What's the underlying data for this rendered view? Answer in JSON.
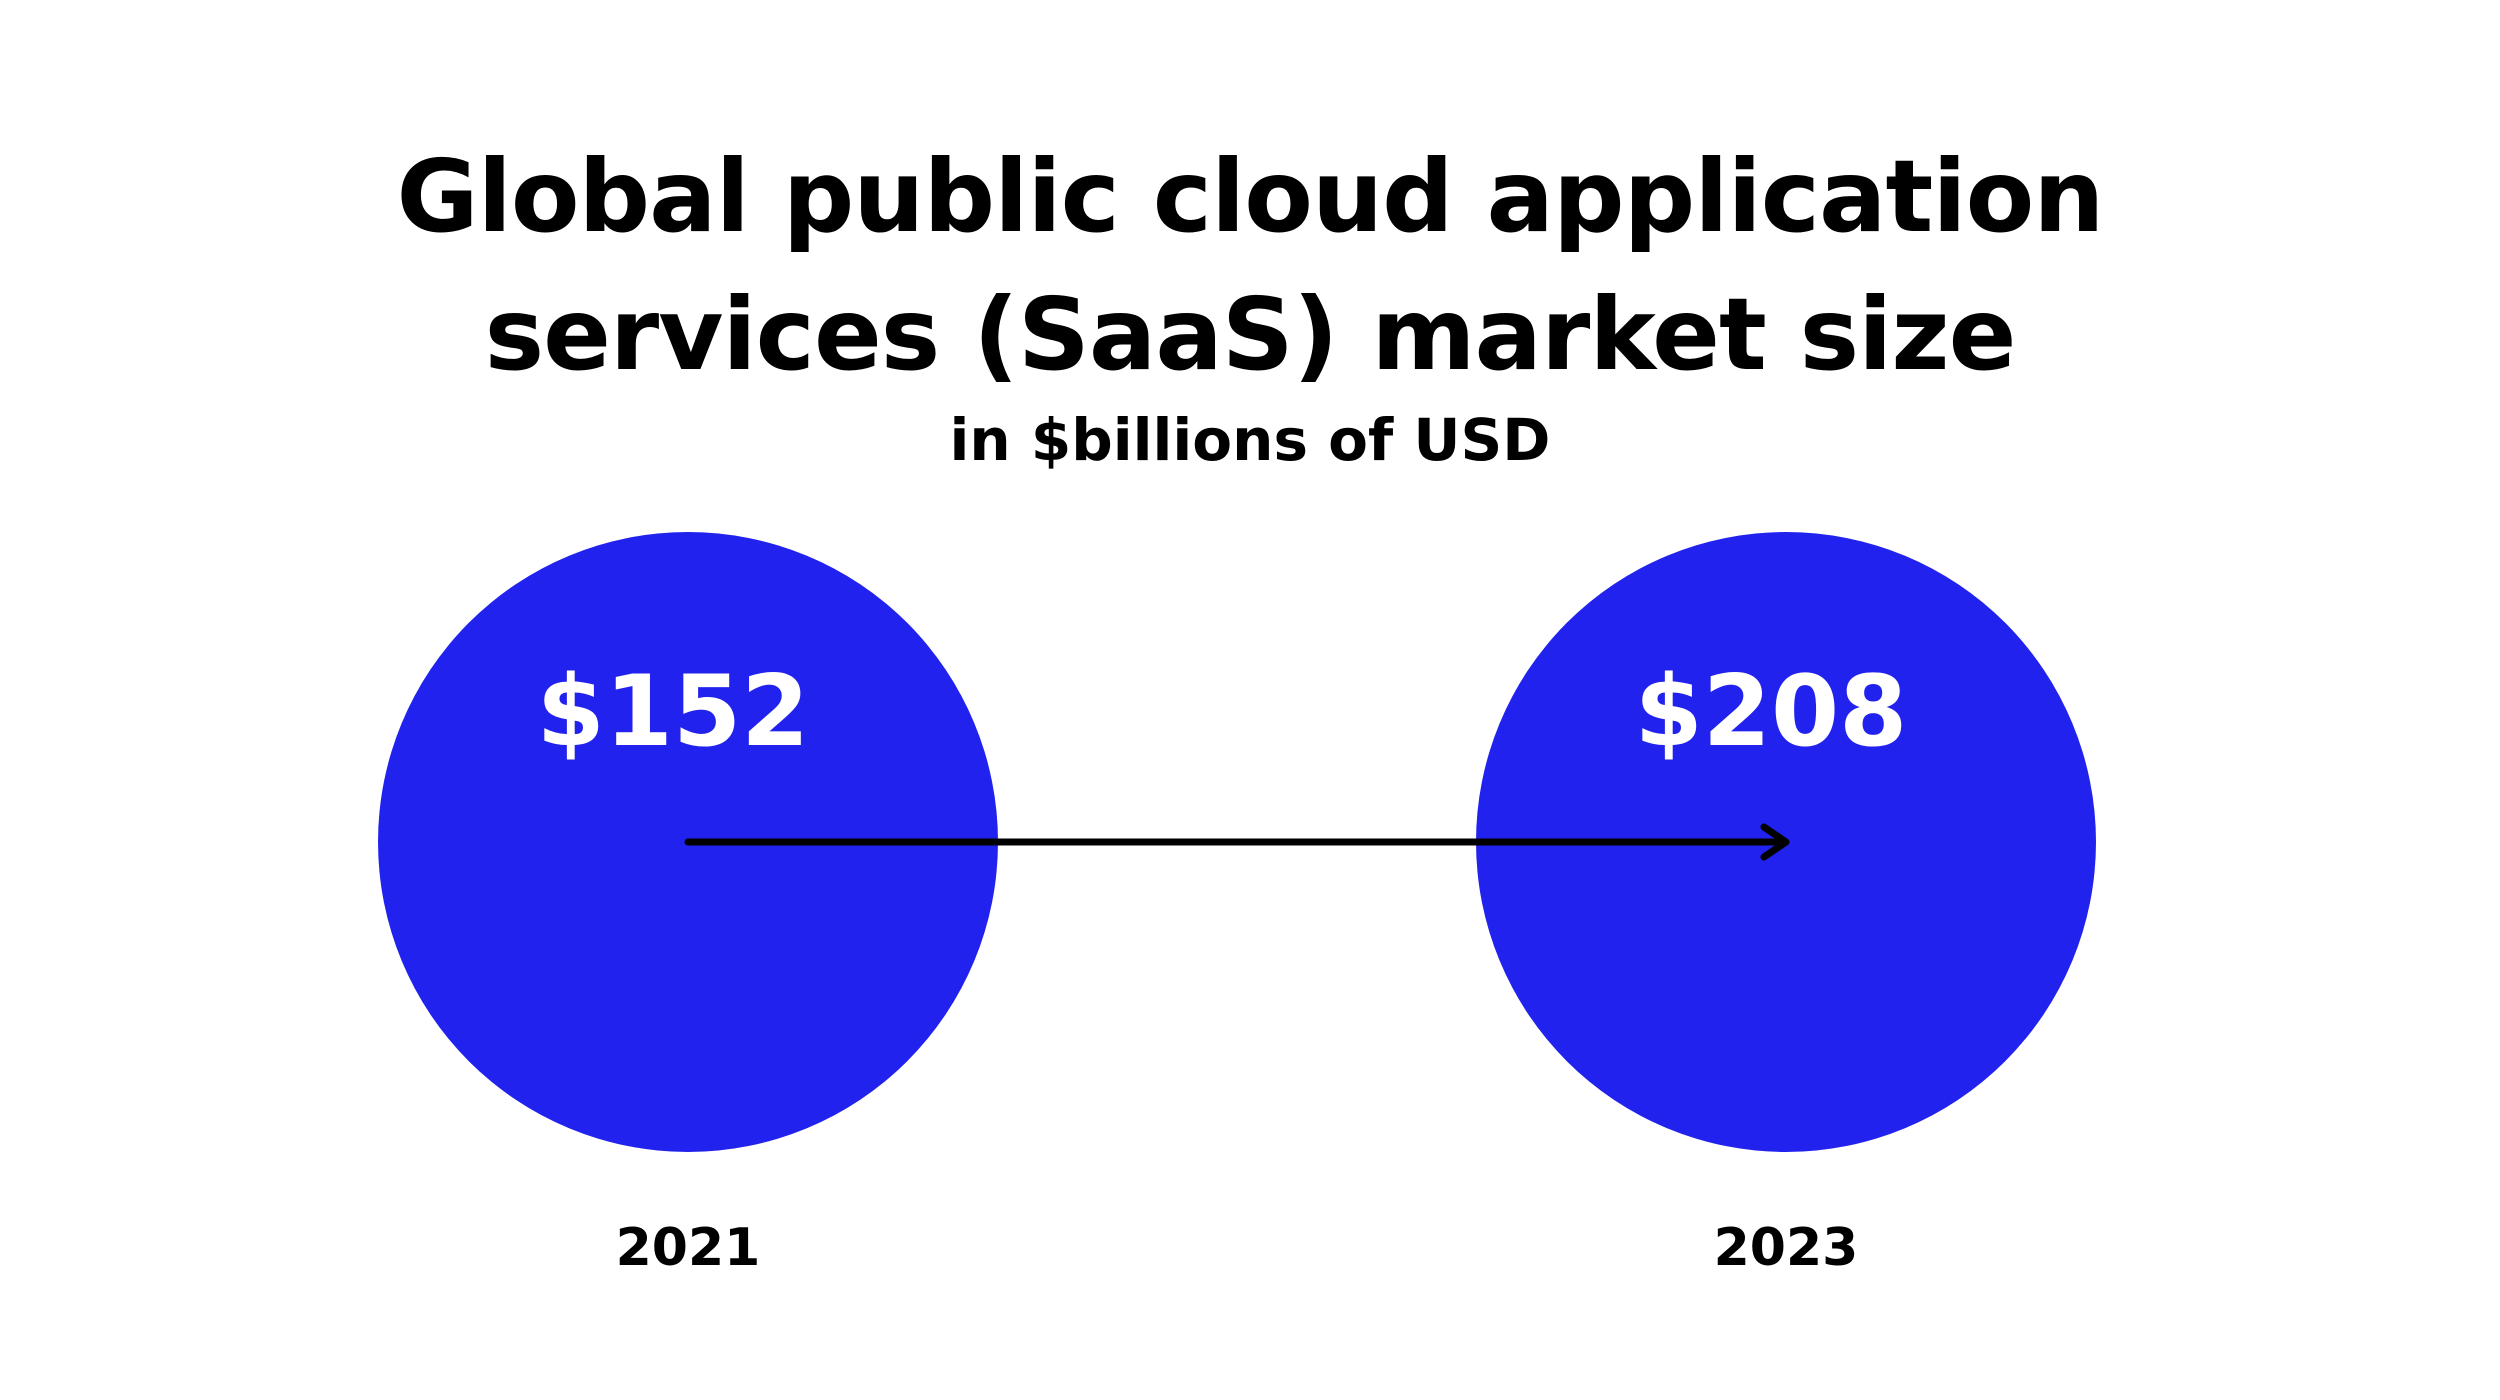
{
  "chart_data": {
    "type": "bubble",
    "title": "Global public cloud application services (SaaS) market size",
    "title_lines": [
      "Global public cloud application",
      "services (SaaS) market size"
    ],
    "subtitle": "in $billions of USD",
    "categories": [
      "2021",
      "2023"
    ],
    "values": [
      152,
      208
    ],
    "value_labels": [
      "$152",
      "$208"
    ],
    "colors": {
      "bubble": "#2222EE",
      "value_text": "#FFFFFF",
      "arrow": "#000000",
      "background": "#FFFFFF"
    },
    "arrow": {
      "from": "2021",
      "to": "2023"
    }
  }
}
